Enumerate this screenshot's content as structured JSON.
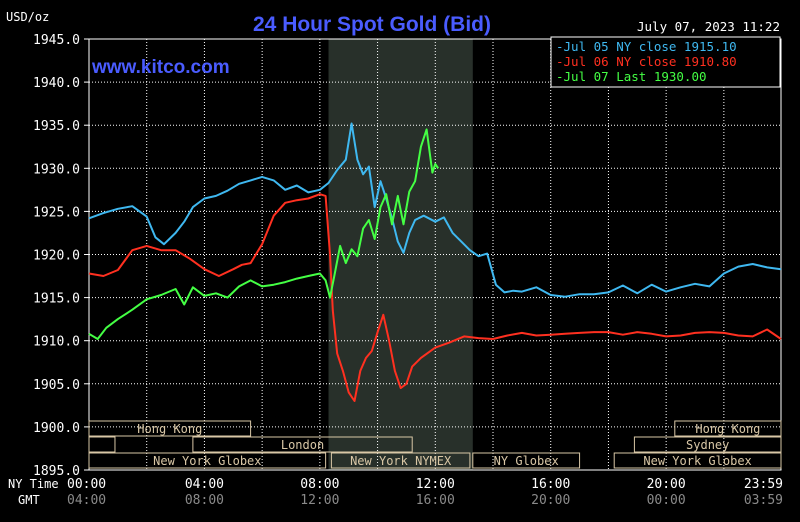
{
  "title": "24 Hour Spot Gold (Bid)",
  "unit_label": "USD/oz",
  "watermark": "www.kitco.com",
  "timestamp": "July 07, 2023 11:22",
  "colors": {
    "background": "#000000",
    "grid": "#ffffff",
    "title": "#4a5cff",
    "session_shade": "#28302a",
    "market_bar_fill": "#d9c7a6",
    "market_bar_text": "#000000",
    "legend_border": "#ffffff",
    "axis_text": "#ffffff",
    "gmt_text": "#8a8a8a"
  },
  "legend": [
    {
      "text": "Jul 05 NY close 1915.10",
      "color": "#3fb8f0"
    },
    {
      "text": "Jul 06 NY close 1910.80",
      "color": "#ff3020"
    },
    {
      "text": "Jul 07 Last 1930.00",
      "color": "#44ff44"
    }
  ],
  "axis_row_labels": {
    "ny": "NY Time",
    "gmt": "GMT"
  },
  "markets": [
    {
      "name": "Hong Kong",
      "start": 0,
      "end": 5.6,
      "row": 0
    },
    {
      "name": "",
      "start": 0,
      "end": 0.9,
      "row": 1
    },
    {
      "name": "London",
      "start": 3.6,
      "end": 11.2,
      "row": 1
    },
    {
      "name": "New York Globex",
      "start": 0,
      "end": 8.2,
      "row": 2
    },
    {
      "name": "New York NYMEX",
      "start": 8.4,
      "end": 13.2,
      "row": 2
    },
    {
      "name": "NY Globex",
      "start": 13.3,
      "end": 17.0,
      "row": 2
    },
    {
      "name": "Hong Kong",
      "start": 20.3,
      "end": 23.98,
      "row": 0
    },
    {
      "name": "Sydney",
      "start": 18.9,
      "end": 23.98,
      "row": 1
    },
    {
      "name": "New York Globex",
      "start": 18.2,
      "end": 23.98,
      "row": 2
    }
  ],
  "chart_data": {
    "type": "line",
    "title": "24 Hour Spot Gold (Bid)",
    "ylabel": "USD/oz",
    "ylim": [
      1895.0,
      1945.0
    ],
    "xlim": [
      0,
      23.98
    ],
    "y_ticks": [
      "1945.0",
      "1940.0",
      "1935.0",
      "1930.0",
      "1925.0",
      "1920.0",
      "1915.0",
      "1910.0",
      "1905.0",
      "1900.0",
      "1895.0"
    ],
    "x_ticks_ny": [
      "00:00",
      "04:00",
      "08:00",
      "12:00",
      "16:00",
      "20:00",
      "23:59"
    ],
    "x_ticks_gmt": [
      "04:00",
      "08:00",
      "12:00",
      "16:00",
      "20:00",
      "00:00",
      "03:59"
    ],
    "grid": true,
    "legend_position": "top-right",
    "shaded_session": [
      8.3,
      13.3
    ],
    "series": [
      {
        "name": "Jul 05 NY close 1915.10",
        "color": "#3fb8f0",
        "x": [
          0,
          0.5,
          1,
          1.5,
          2,
          2.3,
          2.6,
          3,
          3.3,
          3.6,
          4,
          4.4,
          4.8,
          5.2,
          5.6,
          6,
          6.4,
          6.8,
          7.2,
          7.6,
          8,
          8.3,
          8.6,
          8.9,
          9.1,
          9.3,
          9.5,
          9.7,
          9.9,
          10.1,
          10.3,
          10.5,
          10.7,
          10.9,
          11.1,
          11.3,
          11.6,
          12,
          12.3,
          12.6,
          12.9,
          13.2,
          13.5,
          13.8,
          14.1,
          14.4,
          14.7,
          15,
          15.5,
          16,
          16.5,
          17,
          17.5,
          18,
          18.5,
          19,
          19.5,
          20,
          20.5,
          21,
          21.5,
          22,
          22.5,
          23,
          23.5,
          23.98
        ],
        "y": [
          1924.2,
          1924.8,
          1925.3,
          1925.6,
          1924.4,
          1922,
          1921.2,
          1922.5,
          1923.8,
          1925.5,
          1926.5,
          1926.8,
          1927.4,
          1928.2,
          1928.6,
          1929,
          1928.6,
          1927.5,
          1928,
          1927.2,
          1927.5,
          1928.3,
          1929.8,
          1931,
          1935.2,
          1931,
          1929.3,
          1930.2,
          1925.5,
          1928.5,
          1926.5,
          1924.2,
          1921.5,
          1920.2,
          1922.5,
          1924,
          1924.5,
          1923.8,
          1924.3,
          1922.5,
          1921.5,
          1920.5,
          1919.8,
          1920.1,
          1916.5,
          1915.6,
          1915.8,
          1915.7,
          1916.2,
          1915.3,
          1915.1,
          1915.4,
          1915.4,
          1915.6,
          1916.4,
          1915.5,
          1916.5,
          1915.7,
          1916.2,
          1916.6,
          1916.3,
          1917.8,
          1918.6,
          1918.9,
          1918.5,
          1918.3
        ]
      },
      {
        "name": "Jul 06 NY close 1910.80",
        "color": "#ff3020",
        "x": [
          0,
          0.5,
          1,
          1.5,
          2,
          2.5,
          3,
          3.5,
          4,
          4.5,
          5,
          5.3,
          5.6,
          6,
          6.4,
          6.8,
          7.2,
          7.6,
          8,
          8.2,
          8.35,
          8.45,
          8.6,
          8.8,
          9,
          9.2,
          9.4,
          9.6,
          9.8,
          10,
          10.2,
          10.4,
          10.6,
          10.8,
          11,
          11.2,
          11.5,
          12,
          12.5,
          13,
          13.5,
          14,
          14.5,
          15,
          15.5,
          16,
          16.5,
          17,
          17.5,
          18,
          18.5,
          19,
          19.5,
          20,
          20.5,
          21,
          21.5,
          22,
          22.5,
          23,
          23.5,
          23.98
        ],
        "y": [
          1917.8,
          1917.5,
          1918.2,
          1920.5,
          1921,
          1920.5,
          1920.5,
          1919.5,
          1918.3,
          1917.5,
          1918.3,
          1918.8,
          1919,
          1921.2,
          1924.5,
          1926,
          1926.3,
          1926.5,
          1927,
          1926.8,
          1920,
          1913.5,
          1908.5,
          1906.5,
          1904,
          1903,
          1906.5,
          1908,
          1908.8,
          1911,
          1913,
          1910,
          1906.5,
          1904.5,
          1905,
          1907,
          1908,
          1909.2,
          1909.8,
          1910.5,
          1910.3,
          1910.2,
          1910.6,
          1910.9,
          1910.6,
          1910.7,
          1910.8,
          1910.9,
          1911,
          1911,
          1910.7,
          1911,
          1910.8,
          1910.5,
          1910.6,
          1910.9,
          1911,
          1910.9,
          1910.6,
          1910.5,
          1911.3,
          1910.2
        ]
      },
      {
        "name": "Jul 07 Last 1930.00",
        "color": "#44ff44",
        "x": [
          0,
          0.3,
          0.6,
          1,
          1.5,
          2,
          2.5,
          3,
          3.3,
          3.6,
          4,
          4.4,
          4.8,
          5.2,
          5.6,
          6,
          6.4,
          6.8,
          7.2,
          7.6,
          8,
          8.2,
          8.35,
          8.5,
          8.7,
          8.9,
          9.1,
          9.3,
          9.5,
          9.7,
          9.9,
          10.1,
          10.3,
          10.5,
          10.7,
          10.9,
          11.1,
          11.3,
          11.5,
          11.7,
          11.9,
          12,
          12.1
        ],
        "y": [
          1910.8,
          1910.2,
          1911.5,
          1912.5,
          1913.6,
          1914.8,
          1915.3,
          1916,
          1914.2,
          1916.2,
          1915.2,
          1915.5,
          1915,
          1916.3,
          1917,
          1916.3,
          1916.5,
          1916.8,
          1917.2,
          1917.5,
          1917.8,
          1917,
          1915,
          1917.5,
          1921,
          1919,
          1920.6,
          1919.8,
          1923,
          1924,
          1921.8,
          1925.5,
          1927,
          1923.5,
          1926.8,
          1923.5,
          1927.3,
          1928.5,
          1932.5,
          1934.5,
          1929.5,
          1930.5,
          1930
        ]
      }
    ]
  }
}
